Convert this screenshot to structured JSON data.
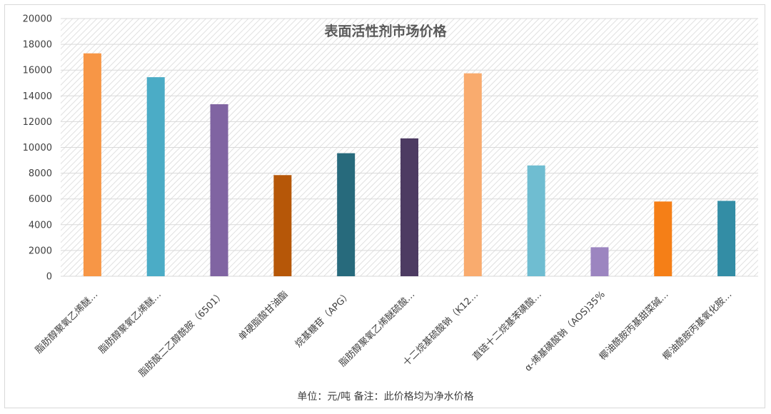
{
  "chart_data": {
    "type": "bar",
    "title": "表面活性剂市场价格",
    "categories": [
      "脂肪醇聚氧乙烯醚…",
      "脂肪醇聚氧乙烯醚…",
      "脂肪酸二乙醇酰胺（6501）",
      "单硬脂酸甘油酯",
      "烷基糖苷（APG）",
      "脂肪醇聚氧乙烯醚硫酸…",
      "十二烷基硫酸钠（K12…",
      "直链十二烷基苯磺酸…",
      "α-烯基磺酸钠（AOS)35%",
      "椰油酰胺丙基甜菜碱…",
      "椰油酰胺丙基氧化胺…"
    ],
    "values": [
      17300,
      15450,
      13350,
      7850,
      9550,
      10700,
      15750,
      8600,
      2250,
      5800,
      5850
    ],
    "colors": [
      "#f79646",
      "#4bacc6",
      "#8064a2",
      "#b65708",
      "#276a7c",
      "#4d3b62",
      "#f9ab6e",
      "#6fbdd1",
      "#9c85c0",
      "#f57f17",
      "#338da5"
    ],
    "ylim": [
      0,
      20000
    ],
    "yticks": [
      0,
      2000,
      4000,
      6000,
      8000,
      10000,
      12000,
      14000,
      16000,
      18000,
      20000
    ],
    "grid": true,
    "legend": "none"
  },
  "footnote": "单位：元/吨  备注：此价格均为净水价格"
}
